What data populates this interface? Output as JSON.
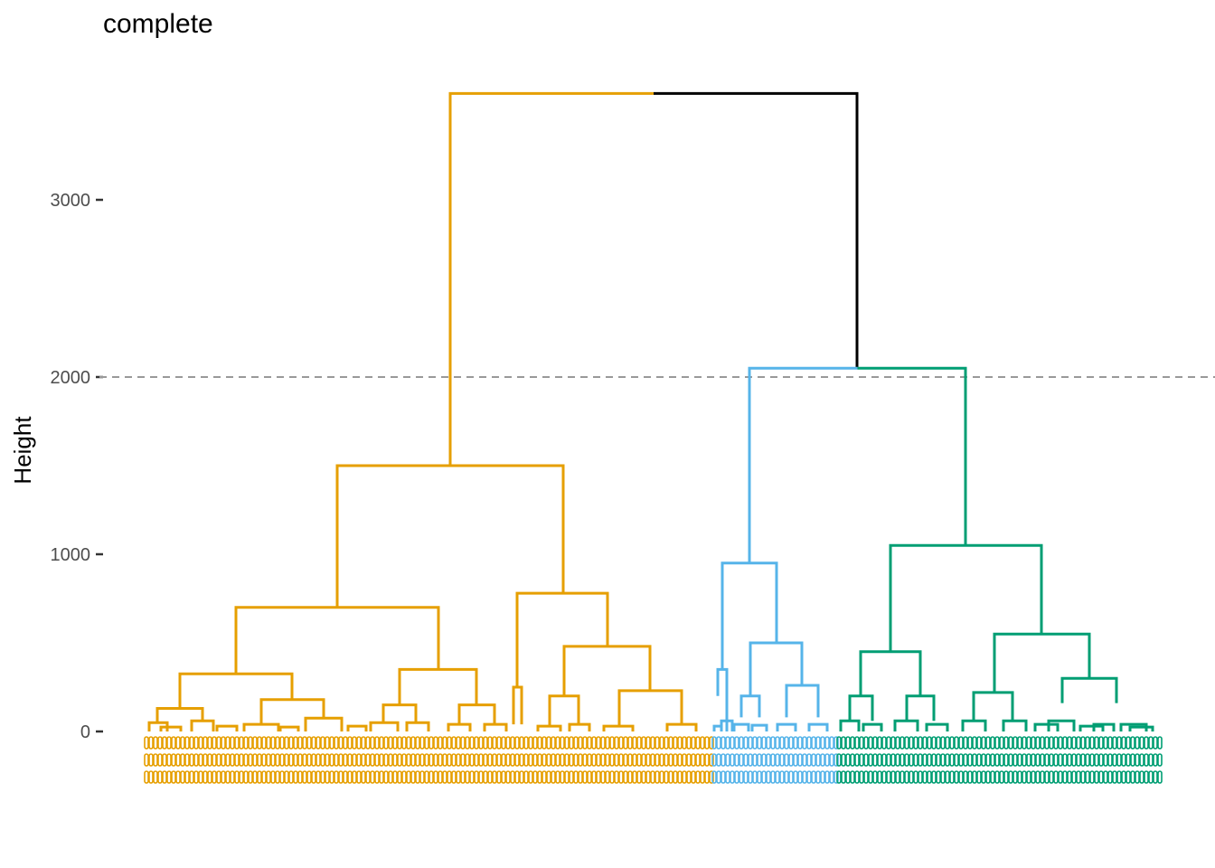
{
  "chart_data": {
    "type": "dendrogram",
    "title": "complete",
    "ylabel": "Height",
    "xlabel": "",
    "ylim": [
      -260,
      3800
    ],
    "yticks": [
      0,
      1000,
      2000,
      3000
    ],
    "yticklabels": [
      "0",
      "1000",
      "2000",
      "3000"
    ],
    "cut_height": 2000,
    "grid": false,
    "n_clusters": 3,
    "colors": {
      "cluster_1": "#E69F00",
      "cluster_2": "#56B4E9",
      "cluster_3": "#009E73",
      "root": "#000000",
      "cutline": "#999999"
    },
    "merge_heights": {
      "root": 3600,
      "clusters_2_3": 2050,
      "cluster_1_root": 1500,
      "cluster_1_left": 700,
      "cluster_1_right": 780,
      "cluster_2_root": 950,
      "cluster_3_root": 1050,
      "cluster_3_left": 450,
      "cluster_3_right": 550
    },
    "clusters": [
      {
        "name": "1",
        "color": "#E69F00",
        "merge_height": 1500
      },
      {
        "name": "2",
        "color": "#56B4E9",
        "merge_height": 950
      },
      {
        "name": "3",
        "color": "#009E73",
        "merge_height": 1050
      }
    ]
  }
}
